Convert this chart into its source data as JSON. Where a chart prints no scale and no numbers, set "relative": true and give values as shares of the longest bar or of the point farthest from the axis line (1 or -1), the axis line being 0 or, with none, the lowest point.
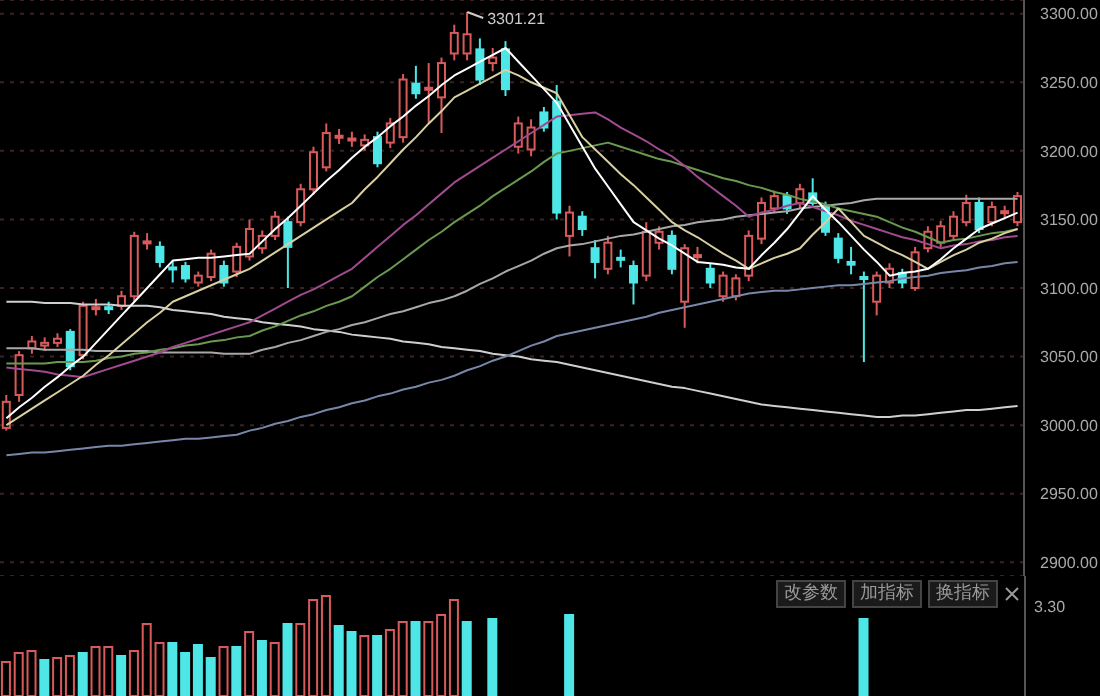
{
  "chart_data": [
    {
      "type": "candlestick",
      "categories": [
        null,
        null,
        null,
        null,
        null,
        null,
        null,
        null,
        null,
        null,
        null,
        null,
        null,
        null,
        null,
        null,
        null,
        null,
        null,
        null,
        null,
        null,
        null,
        null,
        null,
        null,
        null,
        null,
        null,
        null,
        null,
        null,
        null,
        null,
        null,
        null,
        null,
        null,
        null,
        null,
        null,
        null,
        null,
        null,
        null,
        null,
        null,
        null,
        null,
        null,
        null,
        null,
        null,
        null,
        null,
        null,
        null,
        null,
        null,
        null,
        null,
        null,
        null,
        null,
        null,
        null,
        null,
        null,
        null,
        null,
        null,
        null,
        null,
        null,
        null,
        null,
        null,
        null,
        null,
        null
      ],
      "ohlc": [
        [
          2998,
          3022,
          2996,
          3017
        ],
        [
          3022,
          3054,
          3017,
          3051
        ],
        [
          3056,
          3065,
          3052,
          3061
        ],
        [
          3058,
          3064,
          3054,
          3060
        ],
        [
          3060,
          3067,
          3057,
          3063
        ],
        [
          3068,
          3070,
          3040,
          3043
        ],
        [
          3051,
          3090,
          3048,
          3087
        ],
        [
          3085,
          3092,
          3080,
          3086
        ],
        [
          3086,
          3090,
          3081,
          3085
        ],
        [
          3087,
          3098,
          3084,
          3094
        ],
        [
          3094,
          3141,
          3090,
          3138
        ],
        [
          3133,
          3140,
          3128,
          3134
        ],
        [
          3130,
          3134,
          3115,
          3119
        ],
        [
          3115,
          3120,
          3104,
          3114
        ],
        [
          3116,
          3119,
          3104,
          3107
        ],
        [
          3104,
          3112,
          3101,
          3109
        ],
        [
          3108,
          3128,
          3105,
          3125
        ],
        [
          3116,
          3120,
          3101,
          3104
        ],
        [
          3112,
          3133,
          3108,
          3130
        ],
        [
          3123,
          3150,
          3120,
          3143
        ],
        [
          3129,
          3142,
          3125,
          3138
        ],
        [
          3138,
          3156,
          3135,
          3152
        ],
        [
          3148,
          3152,
          3100,
          3130
        ],
        [
          3148,
          3176,
          3145,
          3172
        ],
        [
          3172,
          3203,
          3168,
          3199
        ],
        [
          3188,
          3220,
          3185,
          3213
        ],
        [
          3210,
          3216,
          3205,
          3211
        ],
        [
          3208,
          3214,
          3203,
          3209
        ],
        [
          3204,
          3212,
          3200,
          3208
        ],
        [
          3210,
          3214,
          3188,
          3191
        ],
        [
          3206,
          3224,
          3202,
          3220
        ],
        [
          3210,
          3256,
          3206,
          3252
        ],
        [
          3249,
          3262,
          3238,
          3242
        ],
        [
          3245,
          3264,
          3220,
          3246
        ],
        [
          3239,
          3268,
          3213,
          3264
        ],
        [
          3271,
          3292,
          3266,
          3286
        ],
        [
          3271,
          3301.21,
          3266,
          3285
        ],
        [
          3274,
          3282,
          3248,
          3252
        ],
        [
          3264,
          3275,
          3258,
          3268
        ],
        [
          3274,
          3280,
          3240,
          3245
        ],
        [
          3203,
          3225,
          3198,
          3220
        ],
        [
          3201,
          3223,
          3196,
          3217
        ],
        [
          3228,
          3232,
          3214,
          3217
        ],
        [
          3236,
          3248,
          3150,
          3155
        ],
        [
          3138,
          3160,
          3123,
          3155
        ],
        [
          3152,
          3156,
          3138,
          3143
        ],
        [
          3129,
          3135,
          3107,
          3119
        ],
        [
          3114,
          3138,
          3110,
          3133
        ],
        [
          3122,
          3128,
          3115,
          3121
        ],
        [
          3116,
          3120,
          3088,
          3104
        ],
        [
          3109,
          3148,
          3105,
          3141
        ],
        [
          3133,
          3145,
          3128,
          3141
        ],
        [
          3138,
          3142,
          3110,
          3114
        ],
        [
          3090,
          3132,
          3071,
          3129
        ],
        [
          3123,
          3130,
          3118,
          3124
        ],
        [
          3114,
          3118,
          3100,
          3104
        ],
        [
          3094,
          3112,
          3090,
          3109
        ],
        [
          3094,
          3110,
          3091,
          3107
        ],
        [
          3109,
          3142,
          3105,
          3138
        ],
        [
          3136,
          3166,
          3132,
          3162
        ],
        [
          3158,
          3171,
          3155,
          3167
        ],
        [
          3167,
          3170,
          3154,
          3158
        ],
        [
          3162,
          3176,
          3158,
          3172
        ],
        [
          3169,
          3180,
          3160,
          3162
        ],
        [
          3159,
          3163,
          3138,
          3141
        ],
        [
          3136,
          3140,
          3118,
          3122
        ],
        [
          3119,
          3130,
          3110,
          3117
        ],
        [
          3108,
          3112,
          3046,
          3107
        ],
        [
          3090,
          3112,
          3080,
          3109
        ],
        [
          3104,
          3118,
          3100,
          3114
        ],
        [
          3111,
          3114,
          3100,
          3104
        ],
        [
          3100,
          3130,
          3098,
          3126
        ],
        [
          3129,
          3145,
          3126,
          3141
        ],
        [
          3133,
          3149,
          3130,
          3145
        ],
        [
          3138,
          3156,
          3135,
          3152
        ],
        [
          3148,
          3168,
          3145,
          3162
        ],
        [
          3162,
          3166,
          3140,
          3143
        ],
        [
          3148,
          3163,
          3145,
          3159
        ],
        [
          3155,
          3160,
          3150,
          3156
        ],
        [
          3148,
          3170,
          3145,
          3167
        ]
      ],
      "colors": [
        "#d85a5a",
        "#d85a5a",
        "#d85a5a",
        "#d85a5a",
        "#d85a5a",
        "#4ee6e6",
        "#d85a5a",
        "#d85a5a",
        "#4ee6e6",
        "#d85a5a",
        "#d85a5a",
        "#d85a5a",
        "#4ee6e6",
        "#4ee6e6",
        "#4ee6e6",
        "#d85a5a",
        "#d85a5a",
        "#4ee6e6",
        "#d85a5a",
        "#d85a5a",
        "#d85a5a",
        "#d85a5a",
        "#4ee6e6",
        "#d85a5a",
        "#d85a5a",
        "#d85a5a",
        "#d85a5a",
        "#d85a5a",
        "#d85a5a",
        "#4ee6e6",
        "#d85a5a",
        "#d85a5a",
        "#4ee6e6",
        "#d85a5a",
        "#d85a5a",
        "#d85a5a",
        "#d85a5a",
        "#4ee6e6",
        "#d85a5a",
        "#4ee6e6",
        "#d85a5a",
        "#d85a5a",
        "#4ee6e6",
        "#4ee6e6",
        "#d85a5a",
        "#4ee6e6",
        "#4ee6e6",
        "#d85a5a",
        "#4ee6e6",
        "#4ee6e6",
        "#d85a5a",
        "#d85a5a",
        "#4ee6e6",
        "#d85a5a",
        "#d85a5a",
        "#4ee6e6",
        "#d85a5a",
        "#d85a5a",
        "#d85a5a",
        "#d85a5a",
        "#d85a5a",
        "#4ee6e6",
        "#d85a5a",
        "#4ee6e6",
        "#4ee6e6",
        "#4ee6e6",
        "#4ee6e6",
        "#4ee6e6",
        "#d85a5a",
        "#d85a5a",
        "#4ee6e6",
        "#d85a5a",
        "#d85a5a",
        "#d85a5a",
        "#d85a5a",
        "#d85a5a",
        "#4ee6e6",
        "#d85a5a",
        "#d85a5a",
        "#d85a5a"
      ],
      "series": [
        {
          "type": "line",
          "color": "#cfcfcf",
          "values": [
            3090,
            3090,
            3090,
            3089,
            3089,
            3089,
            3088,
            3088,
            3088,
            3087,
            3087,
            3087,
            3086,
            3084,
            3083,
            3082,
            3081,
            3079,
            3078,
            3077,
            3075,
            3074,
            3073,
            3072,
            3070,
            3069,
            3068,
            3066,
            3065,
            3064,
            3063,
            3061,
            3060,
            3059,
            3057,
            3056,
            3055,
            3054,
            3052,
            3051,
            3050,
            3048,
            3047,
            3046,
            3044,
            3042,
            3040,
            3038,
            3036,
            3034,
            3032,
            3030,
            3028,
            3027,
            3025,
            3023,
            3021,
            3019,
            3017,
            3015,
            3014,
            3013,
            3012,
            3011,
            3010,
            3009,
            3008,
            3007,
            3006,
            3006,
            3007,
            3007,
            3008,
            3009,
            3010,
            3011,
            3011,
            3012,
            3013,
            3014
          ]
        },
        {
          "type": "line",
          "color": "#7886a8",
          "values": [
            2978,
            2979,
            2980,
            2980,
            2981,
            2982,
            2983,
            2984,
            2985,
            2985,
            2986,
            2987,
            2988,
            2989,
            2990,
            2990,
            2991,
            2992,
            2993,
            2996,
            2998,
            3001,
            3003,
            3006,
            3008,
            3011,
            3013,
            3016,
            3018,
            3021,
            3023,
            3026,
            3028,
            3031,
            3033,
            3036,
            3040,
            3043,
            3047,
            3050,
            3054,
            3058,
            3061,
            3065,
            3067,
            3069,
            3071,
            3073,
            3075,
            3077,
            3079,
            3082,
            3084,
            3086,
            3088,
            3090,
            3092,
            3094,
            3096,
            3097,
            3098,
            3098,
            3099,
            3100,
            3101,
            3102,
            3102,
            3103,
            3104,
            3105,
            3107,
            3108,
            3109,
            3111,
            3112,
            3113,
            3115,
            3116,
            3118,
            3119
          ]
        },
        {
          "type": "line",
          "color": "#a8a8a8",
          "values": [
            3056,
            3056,
            3056,
            3055,
            3055,
            3055,
            3055,
            3054,
            3054,
            3054,
            3054,
            3054,
            3053,
            3053,
            3053,
            3053,
            3053,
            3052,
            3052,
            3052,
            3055,
            3057,
            3060,
            3062,
            3065,
            3068,
            3070,
            3073,
            3075,
            3078,
            3081,
            3083,
            3086,
            3089,
            3091,
            3094,
            3098,
            3103,
            3107,
            3112,
            3116,
            3120,
            3125,
            3129,
            3131,
            3132,
            3134,
            3136,
            3138,
            3139,
            3141,
            3143,
            3145,
            3146,
            3148,
            3149,
            3150,
            3152,
            3153,
            3154,
            3155,
            3156,
            3158,
            3159,
            3160,
            3161,
            3162,
            3164,
            3165,
            3165,
            3165,
            3165,
            3165,
            3165,
            3165,
            3165,
            3165,
            3165,
            3165,
            3165
          ]
        },
        {
          "type": "line",
          "color": "#6a9a50",
          "values": [
            3045,
            3045,
            3045,
            3045,
            3046,
            3046,
            3046,
            3047,
            3049,
            3050,
            3052,
            3053,
            3055,
            3056,
            3058,
            3059,
            3061,
            3062,
            3064,
            3065,
            3069,
            3072,
            3076,
            3080,
            3083,
            3087,
            3090,
            3094,
            3101,
            3108,
            3114,
            3121,
            3128,
            3135,
            3141,
            3148,
            3154,
            3160,
            3167,
            3173,
            3179,
            3185,
            3192,
            3198,
            3200,
            3202,
            3204,
            3206,
            3203,
            3200,
            3197,
            3194,
            3192,
            3189,
            3186,
            3183,
            3180,
            3178,
            3175,
            3173,
            3170,
            3168,
            3165,
            3163,
            3161,
            3158,
            3156,
            3154,
            3152,
            3148,
            3144,
            3141,
            3137,
            3133,
            3135,
            3136,
            3138,
            3140,
            3141,
            3143
          ]
        },
        {
          "type": "line",
          "color": "#a04a90",
          "values": [
            3042,
            3041,
            3040,
            3039,
            3037,
            3036,
            3035,
            3038,
            3041,
            3044,
            3047,
            3050,
            3053,
            3057,
            3060,
            3063,
            3066,
            3069,
            3072,
            3075,
            3080,
            3085,
            3090,
            3095,
            3099,
            3104,
            3109,
            3114,
            3122,
            3130,
            3138,
            3146,
            3153,
            3161,
            3169,
            3177,
            3183,
            3189,
            3195,
            3201,
            3207,
            3213,
            3219,
            3225,
            3226,
            3227,
            3228,
            3223,
            3217,
            3212,
            3207,
            3201,
            3196,
            3189,
            3181,
            3174,
            3167,
            3160,
            3152,
            3155,
            3157,
            3160,
            3162,
            3159,
            3156,
            3153,
            3149,
            3146,
            3143,
            3140,
            3137,
            3135,
            3132,
            3129,
            3131,
            3132,
            3134,
            3135,
            3137,
            3138
          ]
        },
        {
          "type": "line",
          "color": "#d8d0a0",
          "values": [
            3000,
            3006,
            3012,
            3018,
            3024,
            3030,
            3036,
            3044,
            3051,
            3059,
            3067,
            3075,
            3082,
            3090,
            3094,
            3098,
            3102,
            3106,
            3110,
            3114,
            3120,
            3126,
            3132,
            3138,
            3144,
            3150,
            3156,
            3162,
            3172,
            3181,
            3191,
            3201,
            3210,
            3220,
            3229,
            3239,
            3244,
            3249,
            3254,
            3259,
            3255,
            3250,
            3246,
            3242,
            3226,
            3210,
            3201,
            3192,
            3183,
            3175,
            3166,
            3157,
            3148,
            3142,
            3137,
            3131,
            3125,
            3120,
            3114,
            3118,
            3122,
            3125,
            3129,
            3139,
            3148,
            3158,
            3148,
            3138,
            3133,
            3128,
            3124,
            3119,
            3114,
            3119,
            3124,
            3128,
            3133,
            3136,
            3140,
            3143
          ]
        },
        {
          "type": "line",
          "color": "#ffffff",
          "values": [
            3005,
            3013,
            3020,
            3028,
            3035,
            3043,
            3050,
            3060,
            3070,
            3080,
            3090,
            3100,
            3110,
            3120,
            3121,
            3122,
            3122,
            3123,
            3124,
            3125,
            3134,
            3143,
            3151,
            3160,
            3169,
            3178,
            3186,
            3195,
            3203,
            3210,
            3218,
            3225,
            3233,
            3240,
            3248,
            3255,
            3260,
            3265,
            3270,
            3275,
            3265,
            3255,
            3245,
            3235,
            3219,
            3203,
            3187,
            3174,
            3161,
            3148,
            3142,
            3136,
            3131,
            3125,
            3119,
            3118,
            3117,
            3115,
            3114,
            3124,
            3133,
            3143,
            3155,
            3167,
            3157,
            3148,
            3138,
            3128,
            3119,
            3109,
            3111,
            3112,
            3114,
            3121,
            3129,
            3136,
            3143,
            3147,
            3151,
            3155
          ]
        }
      ],
      "ylim": [
        2890,
        3310
      ],
      "yticks": [
        {
          "value": 2900,
          "label": "2900.00"
        },
        {
          "value": 2950,
          "label": "2950.00"
        },
        {
          "value": 3000,
          "label": "3000.00"
        },
        {
          "value": 3050,
          "label": "3050.00"
        },
        {
          "value": 3100,
          "label": "3100.00"
        },
        {
          "value": 3150,
          "label": "3150.00"
        },
        {
          "value": 3200,
          "label": "3200.00"
        },
        {
          "value": 3250,
          "label": "3250.00"
        },
        {
          "value": 3300,
          "label": "3300.00"
        }
      ],
      "grid": "y",
      "tick_labels": "y",
      "annotations": [
        "3301.21"
      ]
    },
    {
      "type": "bar",
      "relative": true,
      "categories": [
        null,
        null,
        null,
        null,
        null,
        null,
        null,
        null,
        null,
        null,
        null,
        null,
        null,
        null,
        null,
        null,
        null,
        null,
        null,
        null,
        null,
        null,
        null,
        null,
        null,
        null,
        null,
        null,
        null,
        null,
        null,
        null,
        null,
        null,
        null,
        null,
        null,
        null,
        null,
        null,
        null,
        null,
        null,
        null,
        null,
        null,
        null,
        null,
        null,
        null,
        null,
        null,
        null,
        null,
        null,
        null,
        null,
        null,
        null,
        null,
        null,
        null,
        null,
        null,
        null,
        null,
        null,
        null,
        null,
        null,
        null,
        null,
        null,
        null,
        null,
        null,
        null,
        null,
        null,
        null
      ],
      "values": [
        0.34,
        0.43,
        0.45,
        0.36,
        0.38,
        0.4,
        0.43,
        0.49,
        0.49,
        0.4,
        0.45,
        0.72,
        0.53,
        0.53,
        0.43,
        0.51,
        0.38,
        0.49,
        0.49,
        0.64,
        0.55,
        0.53,
        0.72,
        0.72,
        0.96,
        1,
        0.7,
        0.64,
        0.6,
        0.6,
        0.66,
        0.74,
        0.74,
        0.74,
        0.81,
        0.96,
        0.74,
        null,
        0.77,
        null,
        null,
        null,
        null,
        null,
        0.81,
        null,
        null,
        null,
        null,
        null,
        null,
        null,
        null,
        null,
        null,
        null,
        null,
        null,
        null,
        null,
        null,
        null,
        null,
        null,
        null,
        null,
        null,
        0.77,
        null,
        null,
        null,
        null,
        null,
        null,
        null,
        null,
        null,
        null,
        null,
        null
      ],
      "colors": [
        "#d85a5a",
        "#d85a5a",
        "#d85a5a",
        "#4ee6e6",
        "#d85a5a",
        "#d85a5a",
        "#4ee6e6",
        "#d85a5a",
        "#d85a5a",
        "#4ee6e6",
        "#d85a5a",
        "#d85a5a",
        "#d85a5a",
        "#4ee6e6",
        "#4ee6e6",
        "#4ee6e6",
        "#4ee6e6",
        "#d85a5a",
        "#4ee6e6",
        "#d85a5a",
        "#4ee6e6",
        "#d85a5a",
        "#4ee6e6",
        "#d85a5a",
        "#d85a5a",
        "#d85a5a",
        "#4ee6e6",
        "#4ee6e6",
        "#d85a5a",
        "#4ee6e6",
        "#d85a5a",
        "#d85a5a",
        "#4ee6e6",
        "#d85a5a",
        "#d85a5a",
        "#d85a5a",
        "#4ee6e6",
        "#d85a5a",
        "#4ee6e6",
        "#d85a5a",
        "#d85a5a",
        "#d85a5a",
        "#d85a5a",
        "#d85a5a",
        "#4ee6e6",
        "#d85a5a",
        "#d85a5a",
        "#d85a5a",
        "#d85a5a",
        "#d85a5a",
        "#d85a5a",
        "#d85a5a",
        "#d85a5a",
        "#d85a5a",
        "#d85a5a",
        "#d85a5a",
        "#d85a5a",
        "#d85a5a",
        "#d85a5a",
        "#d85a5a",
        "#d85a5a",
        "#d85a5a",
        "#d85a5a",
        "#d85a5a",
        "#d85a5a",
        "#d85a5a",
        "#d85a5a",
        "#4ee6e6",
        "#d85a5a",
        "#d85a5a",
        "#d85a5a",
        "#d85a5a",
        "#d85a5a",
        "#d85a5a",
        "#d85a5a",
        "#d85a5a",
        "#d85a5a",
        "#d85a5a",
        "#d85a5a",
        "#d85a5a"
      ],
      "annotations": [
        "3.30",
        "改参数",
        "加指标",
        "换指标"
      ]
    }
  ]
}
